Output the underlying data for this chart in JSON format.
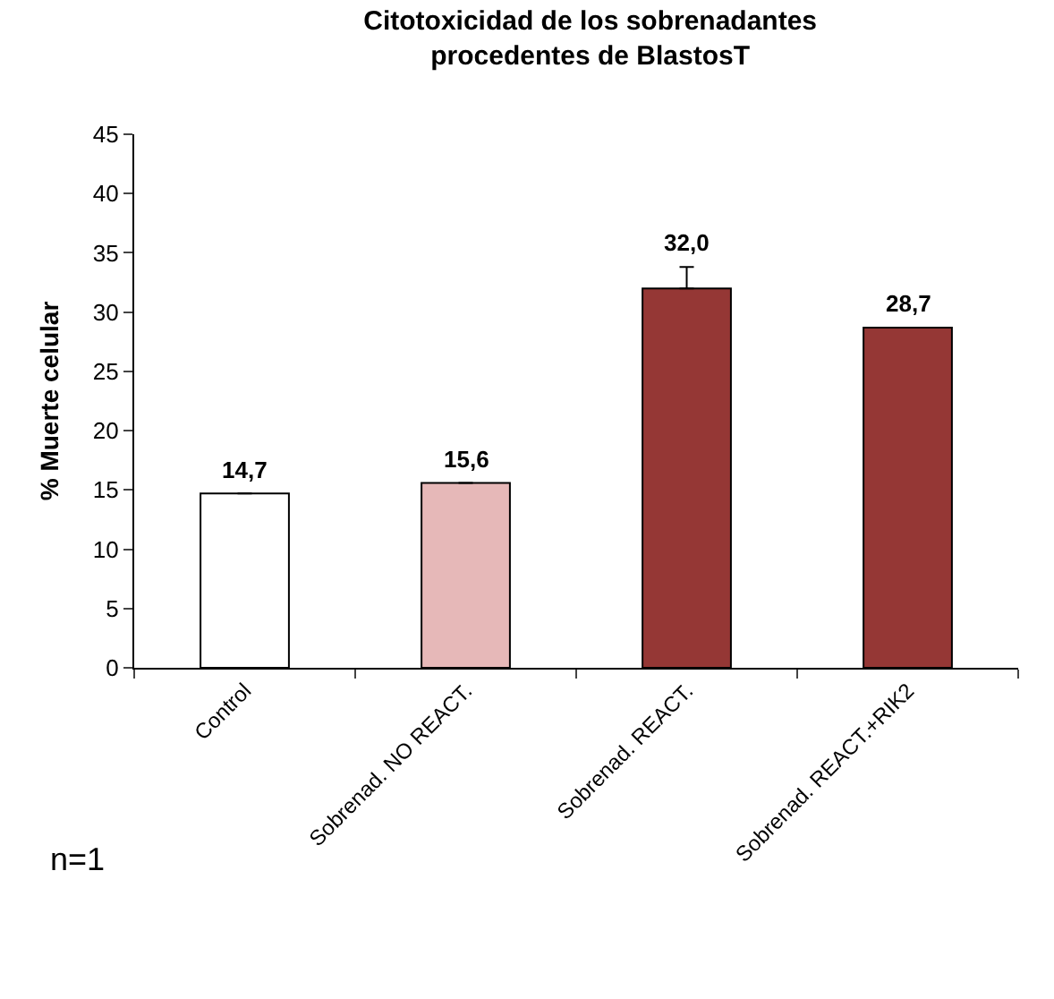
{
  "chart_data": {
    "type": "bar",
    "title": "Citotoxicidad de los sobrenadantes\nprocedentes de BlastosT",
    "ylabel": "% Muerte celular",
    "categories": [
      "Control",
      "Sobrenad. NO REACT.",
      "Sobrenad. REACT.",
      "Sobrenad. REACT.+RIK2"
    ],
    "values": [
      14.7,
      15.6,
      32.0,
      28.7
    ],
    "colors": [
      "#ffffff",
      "#e6b8b8",
      "#953735",
      "#953735"
    ],
    "errors": [
      null,
      null,
      [
        32.0,
        33.8
      ],
      null
    ],
    "value_labels": [
      "14,7",
      "15,6",
      "32,0",
      "28,7"
    ],
    "ylim": [
      0,
      45
    ],
    "yticks": [
      0,
      5,
      10,
      15,
      20,
      25,
      30,
      35,
      40,
      45
    ],
    "annotations": [
      "n=1"
    ]
  }
}
